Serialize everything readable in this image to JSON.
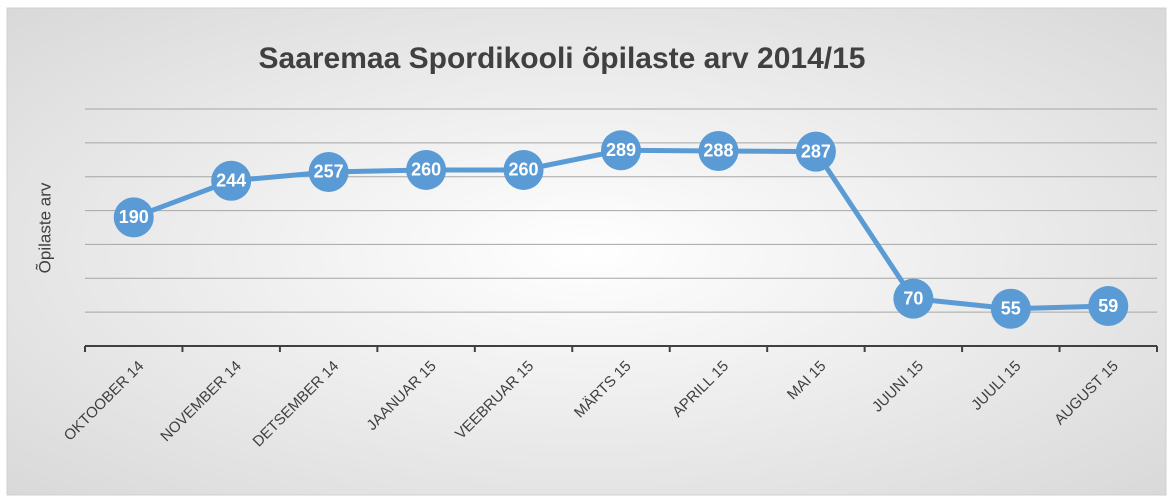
{
  "chart_data": {
    "type": "line",
    "title": "Saaremaa Spordikooli õpilaste arv 2014/15",
    "y_label": "Õpilaste arv",
    "categories": [
      "OKTOOBER 14",
      "NOVEMBER 14",
      "DETSEMBER 14",
      "JAANUAR 15",
      "VEEBRUAR 15",
      "MÄRTS 15",
      "APRILL 15",
      "MAI 15",
      "JUUNI 15",
      "JUULI 15",
      "AUGUST 15"
    ],
    "series": [
      {
        "name": "Õpilaste arv",
        "color": "#5b9bd5",
        "values": [
          190,
          244,
          257,
          260,
          260,
          289,
          288,
          287,
          70,
          55,
          59
        ]
      }
    ],
    "ylim": [
      0,
      350
    ],
    "yticks": [
      0,
      50,
      100,
      150,
      200,
      250,
      300,
      350
    ],
    "grid": true
  }
}
